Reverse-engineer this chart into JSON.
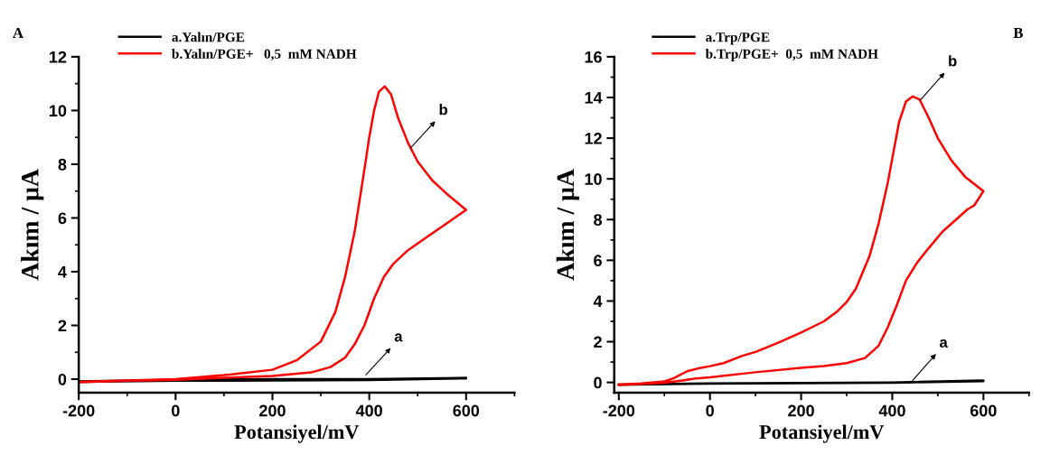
{
  "chart_data": [
    {
      "type": "line",
      "xlabel": "Potansiyel/mV",
      "ylabel": "Akım / μA",
      "xlim": [
        -200,
        700
      ],
      "ylim": [
        -0.5,
        12
      ],
      "xticks": [
        -200,
        0,
        200,
        400,
        600
      ],
      "yticks": [
        0,
        2,
        4,
        6,
        8,
        10,
        12
      ],
      "grid": false,
      "legend": "top left",
      "marker": "none",
      "line_style": "solid",
      "annotations": [
        "A",
        {
          "text": "b",
          "x": 485,
          "y": 8.6
        },
        {
          "text": "a",
          "x": 393,
          "y": 0.16
        }
      ],
      "series": [
        {
          "name": "a.Yalın/PGE",
          "color": "#000000",
          "x": [
            -200,
            0,
            200,
            400,
            600,
            600,
            400,
            200,
            0,
            -200
          ],
          "values": [
            -0.08,
            -0.02,
            0.0,
            0.0,
            0.05,
            0.03,
            -0.03,
            -0.05,
            -0.06,
            -0.1
          ]
        },
        {
          "name": "b.Yalın/PGE+   0,5  mM NADH",
          "color": "#ff0000",
          "x": [
            -200,
            -100,
            0,
            100,
            200,
            250,
            300,
            330,
            350,
            370,
            390,
            400,
            410,
            420,
            432,
            445,
            460,
            480,
            500,
            530,
            560,
            600,
            560,
            520,
            480,
            450,
            430,
            410,
            390,
            370,
            350,
            320,
            280,
            200,
            100,
            0,
            -100,
            -200
          ],
          "values": [
            -0.1,
            -0.05,
            0.0,
            0.15,
            0.35,
            0.7,
            1.4,
            2.5,
            3.8,
            5.5,
            7.8,
            9.0,
            10.0,
            10.7,
            10.9,
            10.6,
            9.7,
            8.8,
            8.1,
            7.4,
            6.9,
            6.3,
            5.8,
            5.3,
            4.8,
            4.3,
            3.8,
            3.0,
            2.0,
            1.3,
            0.8,
            0.45,
            0.25,
            0.12,
            0.05,
            -0.02,
            -0.06,
            -0.12
          ]
        }
      ]
    },
    {
      "type": "line",
      "xlabel": "Potansiyel/mV",
      "ylabel": "Akım / μA",
      "xlim": [
        -210,
        700
      ],
      "ylim": [
        -0.5,
        16
      ],
      "xticks": [
        -200,
        0,
        200,
        400,
        600
      ],
      "yticks": [
        0,
        2,
        4,
        6,
        8,
        10,
        12,
        14,
        16
      ],
      "grid": false,
      "legend": "top left",
      "marker": "none",
      "line_style": "solid",
      "annotations": [
        "B",
        {
          "text": "b",
          "x": 463,
          "y": 13.9
        },
        {
          "text": "a",
          "x": 444,
          "y": 0.08
        }
      ],
      "series": [
        {
          "name": "a.Trp/PGE",
          "color": "#000000",
          "x": [
            -200,
            0,
            400,
            600,
            600,
            400,
            0,
            -200
          ],
          "values": [
            -0.1,
            -0.05,
            0.0,
            0.1,
            0.06,
            -0.02,
            -0.06,
            -0.12
          ]
        },
        {
          "name": "b.Trp/PGE+  0,5  mM NADH",
          "color": "#ff0000",
          "x": [
            -200,
            -150,
            -100,
            -80,
            -50,
            -20,
            0,
            30,
            70,
            100,
            150,
            200,
            250,
            280,
            300,
            320,
            350,
            370,
            390,
            400,
            415,
            430,
            445,
            460,
            480,
            500,
            530,
            560,
            600,
            580,
            565,
            560,
            540,
            510,
            480,
            455,
            430,
            410,
            390,
            370,
            340,
            300,
            250,
            200,
            100,
            0,
            -30,
            -60,
            -100,
            -150,
            -200
          ],
          "values": [
            -0.1,
            -0.05,
            0.05,
            0.2,
            0.55,
            0.72,
            0.8,
            0.95,
            1.3,
            1.5,
            1.95,
            2.45,
            3.0,
            3.5,
            3.95,
            4.6,
            6.2,
            7.8,
            9.8,
            11.0,
            12.8,
            13.8,
            14.05,
            13.9,
            13.0,
            12.0,
            10.9,
            10.1,
            9.4,
            8.7,
            8.5,
            8.4,
            8.0,
            7.4,
            6.6,
            5.9,
            5.0,
            3.8,
            2.7,
            1.8,
            1.2,
            0.95,
            0.8,
            0.72,
            0.5,
            0.25,
            0.2,
            0.1,
            -0.02,
            -0.07,
            -0.12
          ]
        }
      ]
    }
  ]
}
